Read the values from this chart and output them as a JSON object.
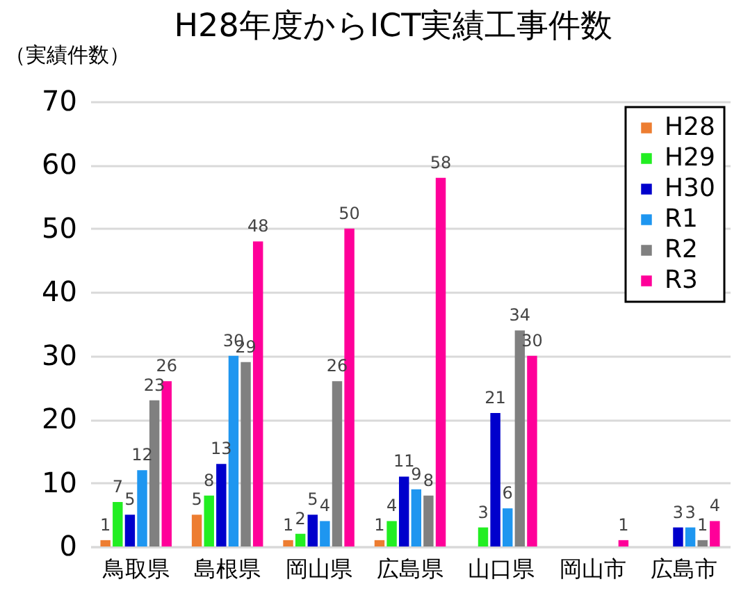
{
  "chart_data": {
    "type": "bar",
    "title": "H28年度からICT実績工事件数",
    "ylabel": "（実績件数）",
    "categories": [
      "鳥取県",
      "島根県",
      "岡山県",
      "広島県",
      "山口県",
      "岡山市",
      "広島市"
    ],
    "series": [
      {
        "name": "H28",
        "color": "#ed7d31",
        "values": [
          1,
          5,
          1,
          1,
          null,
          null,
          null
        ]
      },
      {
        "name": "H29",
        "color": "#22ee22",
        "values": [
          7,
          8,
          2,
          4,
          3,
          null,
          null
        ]
      },
      {
        "name": "H30",
        "color": "#0000cc",
        "values": [
          5,
          13,
          5,
          11,
          21,
          null,
          3
        ]
      },
      {
        "name": "R1",
        "color": "#1e96f0",
        "values": [
          12,
          30,
          4,
          9,
          6,
          null,
          3
        ]
      },
      {
        "name": "R2",
        "color": "#808080",
        "values": [
          23,
          29,
          26,
          8,
          34,
          null,
          1
        ]
      },
      {
        "name": "R3",
        "color": "#ff0099",
        "values": [
          26,
          48,
          50,
          58,
          30,
          1,
          4
        ]
      }
    ],
    "ylim": [
      0,
      70
    ],
    "yticks": [
      0,
      10,
      20,
      30,
      40,
      50,
      60,
      70
    ],
    "grid": "y",
    "legend": "top right",
    "data_labels": true
  }
}
